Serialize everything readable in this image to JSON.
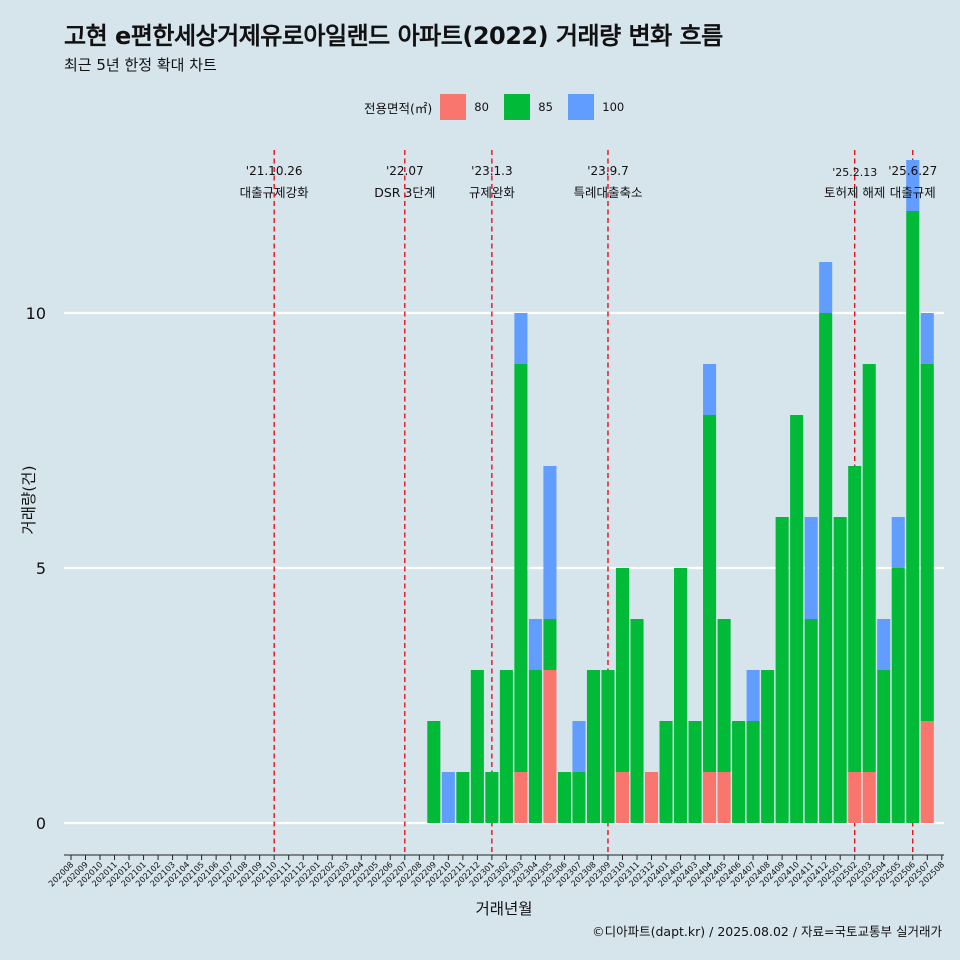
{
  "title": "고현 e편한세상거제유로아일랜드 아파트(2022) 거래량 변화 흐름",
  "subtitle": "최근 5년 한정 확대 차트",
  "caption": "©디아파트(dapt.kr) / 2025.08.02 / 자료=국토교통부 실거래가",
  "legend": {
    "title": "전용면적(㎡)",
    "items": [
      {
        "label": "80",
        "color": "#f8766d"
      },
      {
        "label": "85",
        "color": "#00ba38"
      },
      {
        "label": "100",
        "color": "#619cff"
      }
    ]
  },
  "chart_data": {
    "type": "bar",
    "xlabel": "거래년월",
    "ylabel": "거래량(건)",
    "ylim": [
      0,
      12
    ],
    "yticks": [
      0,
      5,
      10
    ],
    "grid": true,
    "legend_position": "top",
    "categories": [
      "202008",
      "202009",
      "202010",
      "202011",
      "202012",
      "202101",
      "202102",
      "202103",
      "202104",
      "202105",
      "202106",
      "202107",
      "202108",
      "202109",
      "202110",
      "202111",
      "202112",
      "202201",
      "202202",
      "202203",
      "202204",
      "202205",
      "202206",
      "202207",
      "202208",
      "202209",
      "202210",
      "202211",
      "202212",
      "202301",
      "202302",
      "202303",
      "202304",
      "202305",
      "202306",
      "202307",
      "202308",
      "202309",
      "202310",
      "202311",
      "202312",
      "202401",
      "202402",
      "202403",
      "202404",
      "202405",
      "202406",
      "202407",
      "202408",
      "202409",
      "202410",
      "202411",
      "202412",
      "202501",
      "202502",
      "202503",
      "202504",
      "202505",
      "202506",
      "202507",
      "202508"
    ],
    "series": [
      {
        "name": "80",
        "color": "#f8766d",
        "values": [
          0,
          0,
          0,
          0,
          0,
          0,
          0,
          0,
          0,
          0,
          0,
          0,
          0,
          0,
          0,
          0,
          0,
          0,
          0,
          0,
          0,
          0,
          0,
          0,
          0,
          0,
          0,
          0,
          0,
          0,
          0,
          1,
          0,
          3,
          0,
          0,
          0,
          0,
          1,
          0,
          1,
          0,
          0,
          0,
          1,
          1,
          0,
          0,
          0,
          0,
          0,
          0,
          0,
          0,
          1,
          1,
          0,
          0,
          0,
          2,
          0
        ]
      },
      {
        "name": "85",
        "color": "#00ba38",
        "values": [
          0,
          0,
          0,
          0,
          0,
          0,
          0,
          0,
          0,
          0,
          0,
          0,
          0,
          0,
          0,
          0,
          0,
          0,
          0,
          0,
          0,
          0,
          0,
          0,
          0,
          2,
          0,
          1,
          3,
          1,
          3,
          8,
          3,
          1,
          1,
          1,
          3,
          3,
          4,
          4,
          0,
          2,
          5,
          2,
          7,
          3,
          2,
          2,
          3,
          6,
          8,
          4,
          10,
          6,
          6,
          8,
          3,
          5,
          12,
          7,
          0
        ]
      },
      {
        "name": "100",
        "color": "#619cff",
        "values": [
          0,
          0,
          0,
          0,
          0,
          0,
          0,
          0,
          0,
          0,
          0,
          0,
          0,
          0,
          0,
          0,
          0,
          0,
          0,
          0,
          0,
          0,
          0,
          0,
          0,
          0,
          1,
          0,
          0,
          0,
          0,
          1,
          1,
          3,
          0,
          1,
          0,
          0,
          0,
          0,
          0,
          0,
          0,
          0,
          1,
          0,
          0,
          1,
          0,
          0,
          0,
          2,
          1,
          0,
          0,
          0,
          1,
          1,
          1,
          1,
          0
        ]
      }
    ],
    "annotations": [
      {
        "date": "'21.10.26",
        "text": "대출규제강화",
        "month": "202110"
      },
      {
        "date": "'22.07",
        "text": "DSR 3단계",
        "month": "202207"
      },
      {
        "date": "'23.1.3",
        "text": "규제완화",
        "month": "202301"
      },
      {
        "date": "'23.9.7",
        "text": "특례대출축소",
        "month": "202309"
      },
      {
        "date": "'25.2.13",
        "text": "토허제 해제",
        "month": "202502"
      },
      {
        "date": "'25.6.27",
        "text": "대출규제",
        "month": "202506"
      }
    ]
  }
}
